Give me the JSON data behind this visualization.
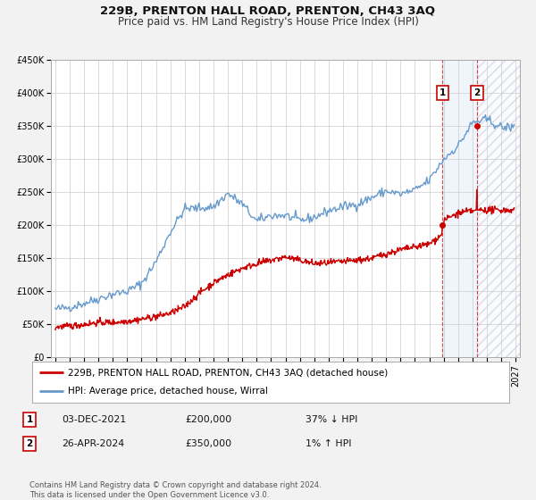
{
  "title": "229B, PRENTON HALL ROAD, PRENTON, CH43 3AQ",
  "subtitle": "Price paid vs. HM Land Registry's House Price Index (HPI)",
  "xlim": [
    1994.7,
    2027.3
  ],
  "ylim": [
    0,
    450000
  ],
  "yticks": [
    0,
    50000,
    100000,
    150000,
    200000,
    250000,
    300000,
    350000,
    400000,
    450000
  ],
  "ytick_labels": [
    "£0",
    "£50K",
    "£100K",
    "£150K",
    "£200K",
    "£250K",
    "£300K",
    "£350K",
    "£400K",
    "£450K"
  ],
  "bg_color": "#f2f2f2",
  "plot_bg_color": "#ffffff",
  "grid_color": "#cccccc",
  "hpi_color": "#6699cc",
  "price_color": "#cc0000",
  "marker1_x": 2021.92,
  "marker1_y": 200000,
  "marker2_x": 2024.32,
  "marker2_y": 350000,
  "vline1_x": 2021.92,
  "vline2_x": 2024.32,
  "shade1_start": 2021.92,
  "shade1_end": 2024.32,
  "shade2_start": 2024.32,
  "shade2_end": 2027.3,
  "legend_label_price": "229B, PRENTON HALL ROAD, PRENTON, CH43 3AQ (detached house)",
  "legend_label_hpi": "HPI: Average price, detached house, Wirral",
  "table_row1": [
    "1",
    "03-DEC-2021",
    "£200,000",
    "37% ↓ HPI"
  ],
  "table_row2": [
    "2",
    "26-APR-2024",
    "£350,000",
    "1% ↑ HPI"
  ],
  "footnote": "Contains HM Land Registry data © Crown copyright and database right 2024.\nThis data is licensed under the Open Government Licence v3.0.",
  "title_fontsize": 9.5,
  "subtitle_fontsize": 8.5,
  "tick_fontsize": 7,
  "legend_fontsize": 7.5
}
